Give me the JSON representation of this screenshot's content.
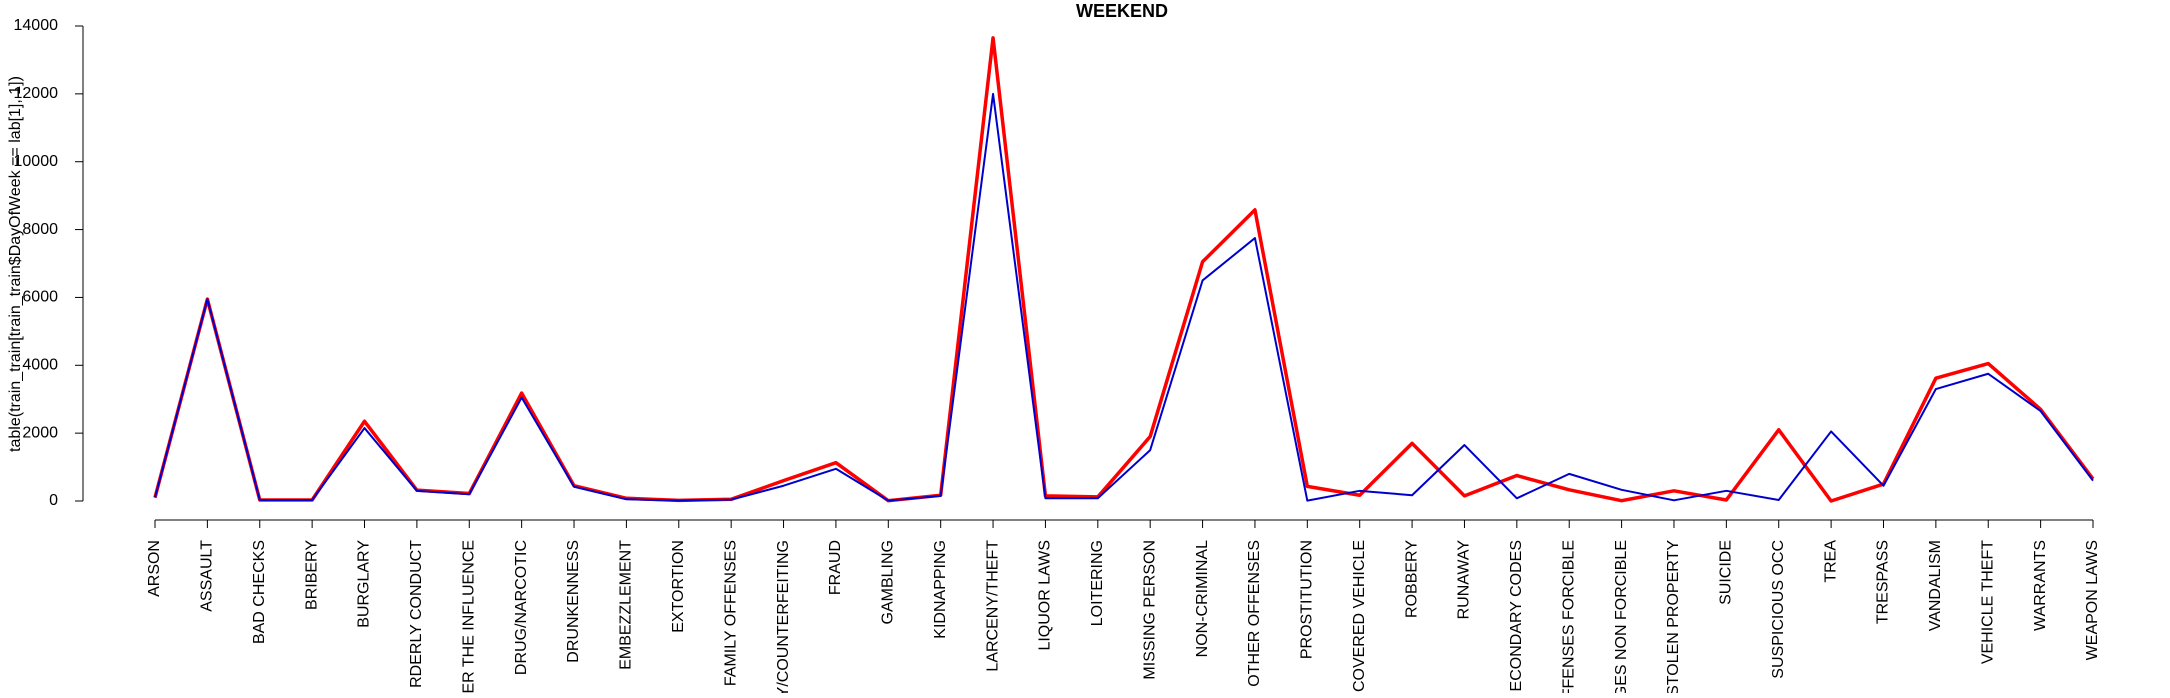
{
  "chart_data": {
    "type": "line",
    "title": "WEEKEND",
    "y_label": "table(train_train[train_train$DayOfWeek == lab[1], 1])",
    "categories": [
      "ARSON",
      "ASSAULT",
      "BAD CHECKS",
      "BRIBERY",
      "BURGLARY",
      "RDERLY CONDUCT",
      "ER THE INFLUENCE",
      "DRUG/NARCOTIC",
      "DRUNKENNESS",
      "EMBEZZLEMENT",
      "EXTORTION",
      "FAMILY OFFENSES",
      "Y/COUNTERFEITING",
      "FRAUD",
      "GAMBLING",
      "KIDNAPPING",
      "LARCENY/THEFT",
      "LIQUOR LAWS",
      "LOITERING",
      "MISSING PERSON",
      "NON-CRIMINAL",
      "OTHER OFFENSES",
      "PROSTITUTION",
      "COVERED VEHICLE",
      "ROBBERY",
      "RUNAWAY",
      "ECONDARY CODES",
      "FFENSES FORCIBLE",
      "GES NON FORCIBLE",
      "STOLEN PROPERTY",
      "SUICIDE",
      "SUSPICIOUS OCC",
      "TREA",
      "TRESPASS",
      "VANDALISM",
      "VEHICLE THEFT",
      "WARRANTS",
      "WEAPON LAWS"
    ],
    "series": [
      {
        "color": "#ff0000",
        "values": [
          100,
          5950,
          30,
          30,
          2350,
          320,
          220,
          3180,
          450,
          80,
          20,
          50,
          600,
          1130,
          10,
          170,
          13650,
          150,
          120,
          1900,
          7050,
          8580,
          430,
          170,
          1700,
          150,
          750,
          330,
          10,
          300,
          30,
          2100,
          0,
          500,
          3620,
          4050,
          2700,
          650
        ]
      },
      {
        "color": "#0000cc",
        "values": [
          100,
          5950,
          30,
          30,
          2150,
          300,
          200,
          3050,
          420,
          50,
          10,
          40,
          450,
          950,
          10,
          150,
          12000,
          80,
          80,
          1500,
          6500,
          7750,
          10,
          300,
          170,
          1650,
          80,
          800,
          330,
          20,
          300,
          30,
          2050,
          450,
          3300,
          3750,
          2650,
          600
        ]
      }
    ],
    "ylim": [
      0,
      14000
    ],
    "yticks": [
      0,
      2000,
      4000,
      6000,
      8000,
      10000,
      12000,
      14000
    ]
  }
}
